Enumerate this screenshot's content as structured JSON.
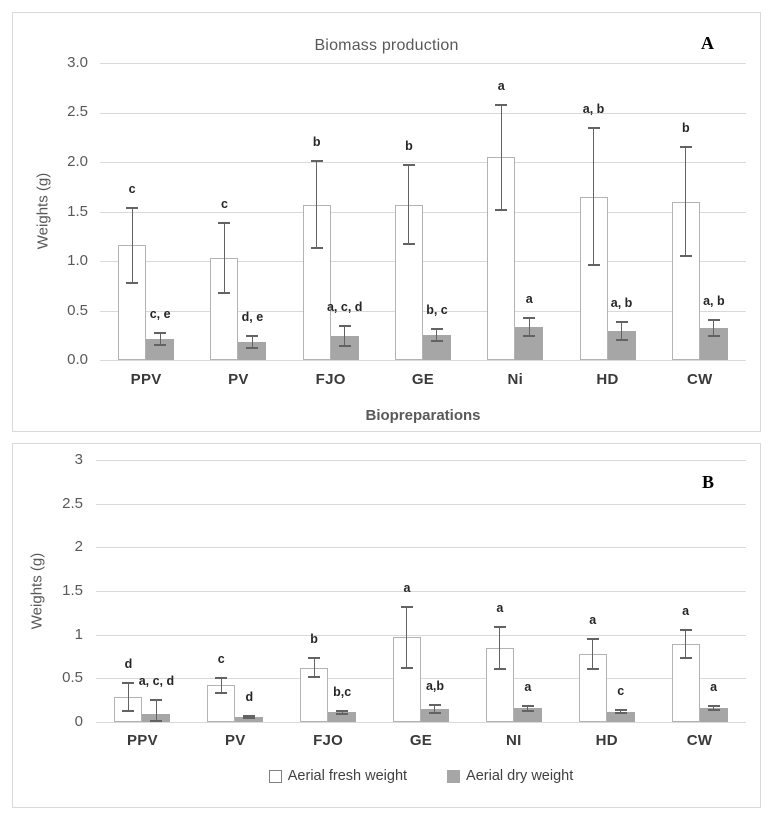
{
  "colors": {
    "panel_border": "#d9d9d9",
    "gridline": "#d9d9d9",
    "fresh_bar_fill": "#ffffff",
    "fresh_bar_border": "#b3b3b3",
    "dry_bar_fill": "#a6a6a6",
    "error_bar": "#636363",
    "axis_text": "#595959",
    "category_text": "#3a3a3a",
    "letter_text": "#262626",
    "panel_label_text": "#000000"
  },
  "legend": {
    "items": [
      {
        "label": "Aerial fresh weight",
        "swatch": "white-outline"
      },
      {
        "label": "Aerial dry weight",
        "swatch": "gray-fill"
      }
    ]
  },
  "chart_data": [
    {
      "type": "bar",
      "panel_label": "A",
      "title": "Biomass production",
      "xlabel": "Biopreparations",
      "ylabel": "Weights (g)",
      "ylim": [
        0,
        3.0
      ],
      "yticks": [
        "3.0",
        "2.5",
        "2.0",
        "1.5",
        "1.0",
        "0.5",
        "0.0"
      ],
      "grid": true,
      "legend_position": "none",
      "categories": [
        "PPV",
        "PV",
        "FJO",
        "GE",
        "Ni",
        "HD",
        "CW"
      ],
      "series": [
        {
          "name": "Aerial fresh weight",
          "values": [
            1.16,
            1.03,
            1.57,
            1.57,
            2.05,
            1.65,
            1.6
          ],
          "errors": [
            0.39,
            0.36,
            0.45,
            0.41,
            0.54,
            0.7,
            0.56
          ],
          "letters": [
            "c",
            "c",
            "b",
            "b",
            "a",
            "a, b",
            "b"
          ]
        },
        {
          "name": "Aerial dry weight",
          "values": [
            0.21,
            0.18,
            0.24,
            0.25,
            0.33,
            0.29,
            0.32
          ],
          "errors": [
            0.07,
            0.07,
            0.11,
            0.07,
            0.1,
            0.1,
            0.09
          ],
          "letters": [
            "c, e",
            "d, e",
            "a, c, d",
            "b, c",
            "a",
            "a, b",
            "a, b"
          ]
        }
      ]
    },
    {
      "type": "bar",
      "panel_label": "B",
      "title": "",
      "xlabel": "",
      "ylabel": "Weights (g)",
      "ylim": [
        0,
        3
      ],
      "yticks": [
        "3",
        "2.5",
        "2",
        "1.5",
        "1",
        "0.5",
        "0"
      ],
      "grid": true,
      "legend_position": "bottom",
      "categories": [
        "PPV",
        "PV",
        "FJO",
        "GE",
        "NI",
        "HD",
        "CW"
      ],
      "series": [
        {
          "name": "Aerial fresh weight",
          "values": [
            0.29,
            0.42,
            0.62,
            0.97,
            0.85,
            0.78,
            0.89
          ],
          "errors": [
            0.17,
            0.1,
            0.12,
            0.36,
            0.25,
            0.18,
            0.17
          ],
          "letters": [
            "d",
            "c",
            "b",
            "a",
            "a",
            "a",
            "a"
          ]
        },
        {
          "name": "Aerial dry weight",
          "values": [
            0.09,
            0.06,
            0.11,
            0.15,
            0.16,
            0.12,
            0.16
          ],
          "errors": [
            0.17,
            0.02,
            0.03,
            0.06,
            0.04,
            0.03,
            0.03
          ],
          "letters": [
            "a, c, d",
            "d",
            "b,c",
            "a,b",
            "a",
            "c",
            "a"
          ]
        }
      ]
    }
  ]
}
